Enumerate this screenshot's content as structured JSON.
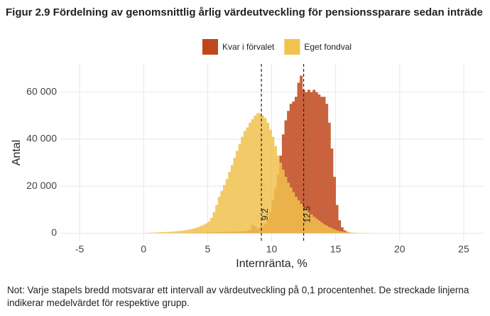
{
  "chart_data": {
    "type": "histogram",
    "title": "Figur 2.9 Fördelning av genomsnittlig årlig värdeutveckling för pensionssparare sedan inträde",
    "x_label": "Internränta, %",
    "y_label": "Antal",
    "note": "Not: Varje stapels bredd motsvarar ett intervall av värdeutveckling på 0,1 procentenhet. De streckade linjerna indikerar medelvärdet för respektive grupp.",
    "bins": [
      0,
      0.2,
      0.4,
      0.6,
      0.8,
      1,
      1.2,
      1.4,
      1.6,
      1.8,
      2,
      2.2,
      2.4,
      2.6,
      2.8,
      3,
      3.2,
      3.4,
      3.6,
      3.8,
      4,
      4.2,
      4.4,
      4.6,
      4.8,
      5,
      5.2,
      5.4,
      5.6,
      5.8,
      6,
      6.2,
      6.4,
      6.6,
      6.8,
      7,
      7.2,
      7.4,
      7.6,
      7.8,
      8,
      8.2,
      8.4,
      8.6,
      8.8,
      9,
      9.2,
      9.4,
      9.6,
      9.8,
      10,
      10.2,
      10.4,
      10.6,
      10.8,
      11,
      11.2,
      11.4,
      11.6,
      11.8,
      12,
      12.2,
      12.4,
      12.6,
      12.8,
      13,
      13.2,
      13.4,
      13.6,
      13.8,
      14,
      14.2,
      14.4,
      14.6,
      14.8,
      15,
      15.2,
      15.4,
      15.6,
      15.8,
      16,
      16.2,
      16.4,
      16.6,
      16.8,
      17,
      17.2,
      17.4,
      17.6,
      17.8,
      18,
      18.2,
      18.4,
      18.6,
      18.8,
      19
    ],
    "series": [
      {
        "name": "Kvar i förvalet",
        "color": "#c0471c",
        "values": [
          0,
          0,
          0,
          0,
          0,
          0,
          0,
          0,
          0,
          0,
          50,
          50,
          50,
          50,
          50,
          100,
          100,
          100,
          150,
          150,
          200,
          200,
          250,
          250,
          300,
          300,
          350,
          400,
          400,
          450,
          500,
          500,
          550,
          600,
          600,
          700,
          700,
          800,
          800,
          900,
          1000,
          1500,
          3500,
          3000,
          2000,
          2500,
          3000,
          4000,
          6000,
          9000,
          14000,
          19000,
          25000,
          33000,
          42000,
          48000,
          52000,
          55000,
          56000,
          58000,
          64000,
          67000,
          61000,
          60000,
          61000,
          60000,
          61000,
          60000,
          59000,
          58000,
          58000,
          55000,
          47000,
          36000,
          24000,
          12000,
          5500,
          2500,
          1200,
          600,
          300,
          150,
          80,
          40,
          20,
          10,
          0,
          0,
          0,
          0,
          0,
          0,
          0,
          0,
          0
        ]
      },
      {
        "name": "Eget fondval",
        "color": "#f2c14e",
        "values": [
          100,
          150,
          200,
          250,
          300,
          350,
          400,
          450,
          500,
          550,
          600,
          700,
          800,
          900,
          1000,
          1100,
          1300,
          1500,
          1700,
          2000,
          2300,
          2700,
          3100,
          3600,
          4200,
          5000,
          6500,
          9000,
          12000,
          15500,
          18000,
          20500,
          23000,
          26000,
          29000,
          32000,
          35000,
          38000,
          41000,
          43500,
          45000,
          47000,
          48500,
          50000,
          51000,
          51000,
          50000,
          49000,
          47000,
          44000,
          41000,
          37000,
          33000,
          30000,
          27000,
          24000,
          21500,
          19500,
          17500,
          15500,
          14000,
          12500,
          11000,
          10000,
          9000,
          8000,
          7000,
          6200,
          5400,
          4600,
          3800,
          3200,
          2600,
          2100,
          1600,
          1200,
          900,
          700,
          500,
          400,
          300,
          250,
          200,
          150,
          100,
          80,
          60,
          50,
          40,
          30,
          20,
          15,
          10,
          5,
          0
        ]
      }
    ],
    "mean_lines": [
      9.2,
      12.5
    ],
    "xlim": [
      -6.5,
      26.5
    ],
    "ylim": [
      -3500,
      72000
    ],
    "xticks": [
      -5,
      0,
      5,
      10,
      15,
      20,
      25
    ],
    "yticks": [
      0,
      {
        "value": 20000,
        "label": "20 000"
      },
      {
        "value": 40000,
        "label": "40 000"
      },
      {
        "value": 60000,
        "label": "60 000"
      }
    ],
    "grid": true,
    "legend": "top"
  }
}
